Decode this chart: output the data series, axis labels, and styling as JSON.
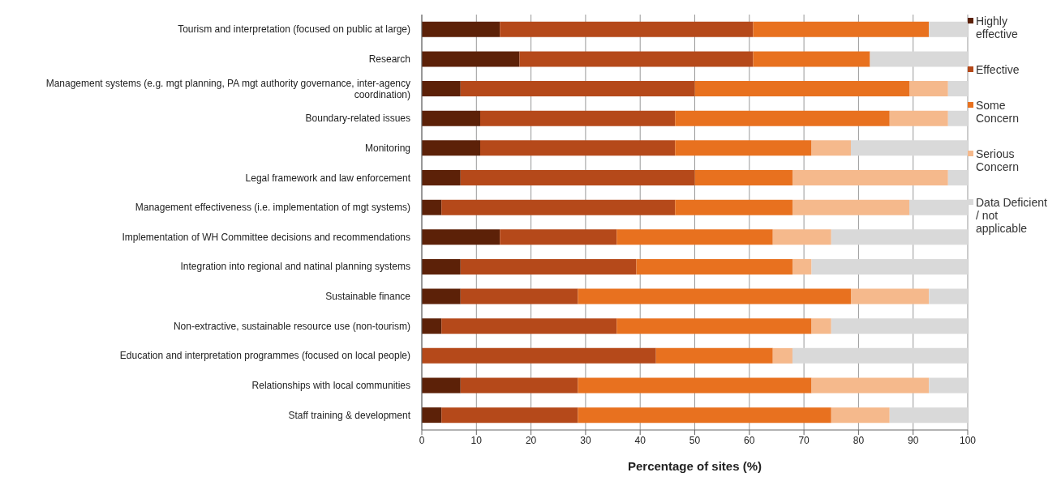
{
  "chart_data": {
    "type": "bar",
    "orientation": "horizontal",
    "stacked": true,
    "xlabel": "Percentage of sites (%)",
    "categories": [
      "Tourism and interpretation (focused on public at large)",
      "Research",
      "Management systems (e.g. mgt planning, PA mgt authority governance, inter-agency coordination)",
      "Boundary-related issues",
      "Monitoring",
      "Legal framework and law enforcement",
      "Management effectiveness (i.e. implementation of mgt systems)",
      "Implementation of WH Committee decisions and recommendations",
      "Integration into regional and natinal planning systems",
      "Sustainable finance",
      "Non-extractive, sustainable resource use (non-tourism)",
      "Education and interpretation programmes (focused on local people)",
      "Relationships with local communities",
      "Staff training & development"
    ],
    "series": [
      {
        "name": "Highly effective",
        "color": "#5c2108",
        "values": [
          14.3,
          17.9,
          7.1,
          10.7,
          10.7,
          7.1,
          3.6,
          14.3,
          7.1,
          7.1,
          3.6,
          null,
          7.1,
          3.6
        ]
      },
      {
        "name": "Effective",
        "color": "#b5491a",
        "values": [
          46.4,
          42.8,
          42.9,
          35.7,
          35.7,
          42.9,
          42.8,
          21.4,
          32.2,
          21.5,
          32.1,
          42.9,
          21.5,
          25
        ]
      },
      {
        "name": "Some Concern",
        "color": "#e8711f",
        "values": [
          32.2,
          21.4,
          39.3,
          39.3,
          25,
          17.9,
          21.5,
          28.6,
          28.6,
          50,
          35.7,
          21.4,
          42.8,
          46.4
        ]
      },
      {
        "name": "Serious Concern",
        "color": "#f5b98c",
        "values": [
          null,
          null,
          7.1,
          10.7,
          7.2,
          28.5,
          21.4,
          10.7,
          3.5,
          14.3,
          3.6,
          3.6,
          21.5,
          10.7
        ]
      },
      {
        "name": "Data Deficient / not applicable",
        "color": "#d9d9d9",
        "values": [
          7.1,
          17.9,
          3.6,
          3.6,
          21.4,
          3.6,
          10.7,
          25,
          28.6,
          7.1,
          25,
          32.1,
          7.1,
          14.3
        ]
      }
    ],
    "xlim": [
      0,
      100
    ],
    "xticks": [
      0,
      10,
      20,
      30,
      40,
      50,
      60,
      70,
      80,
      90,
      100
    ],
    "grid": "x",
    "legend": "right"
  }
}
